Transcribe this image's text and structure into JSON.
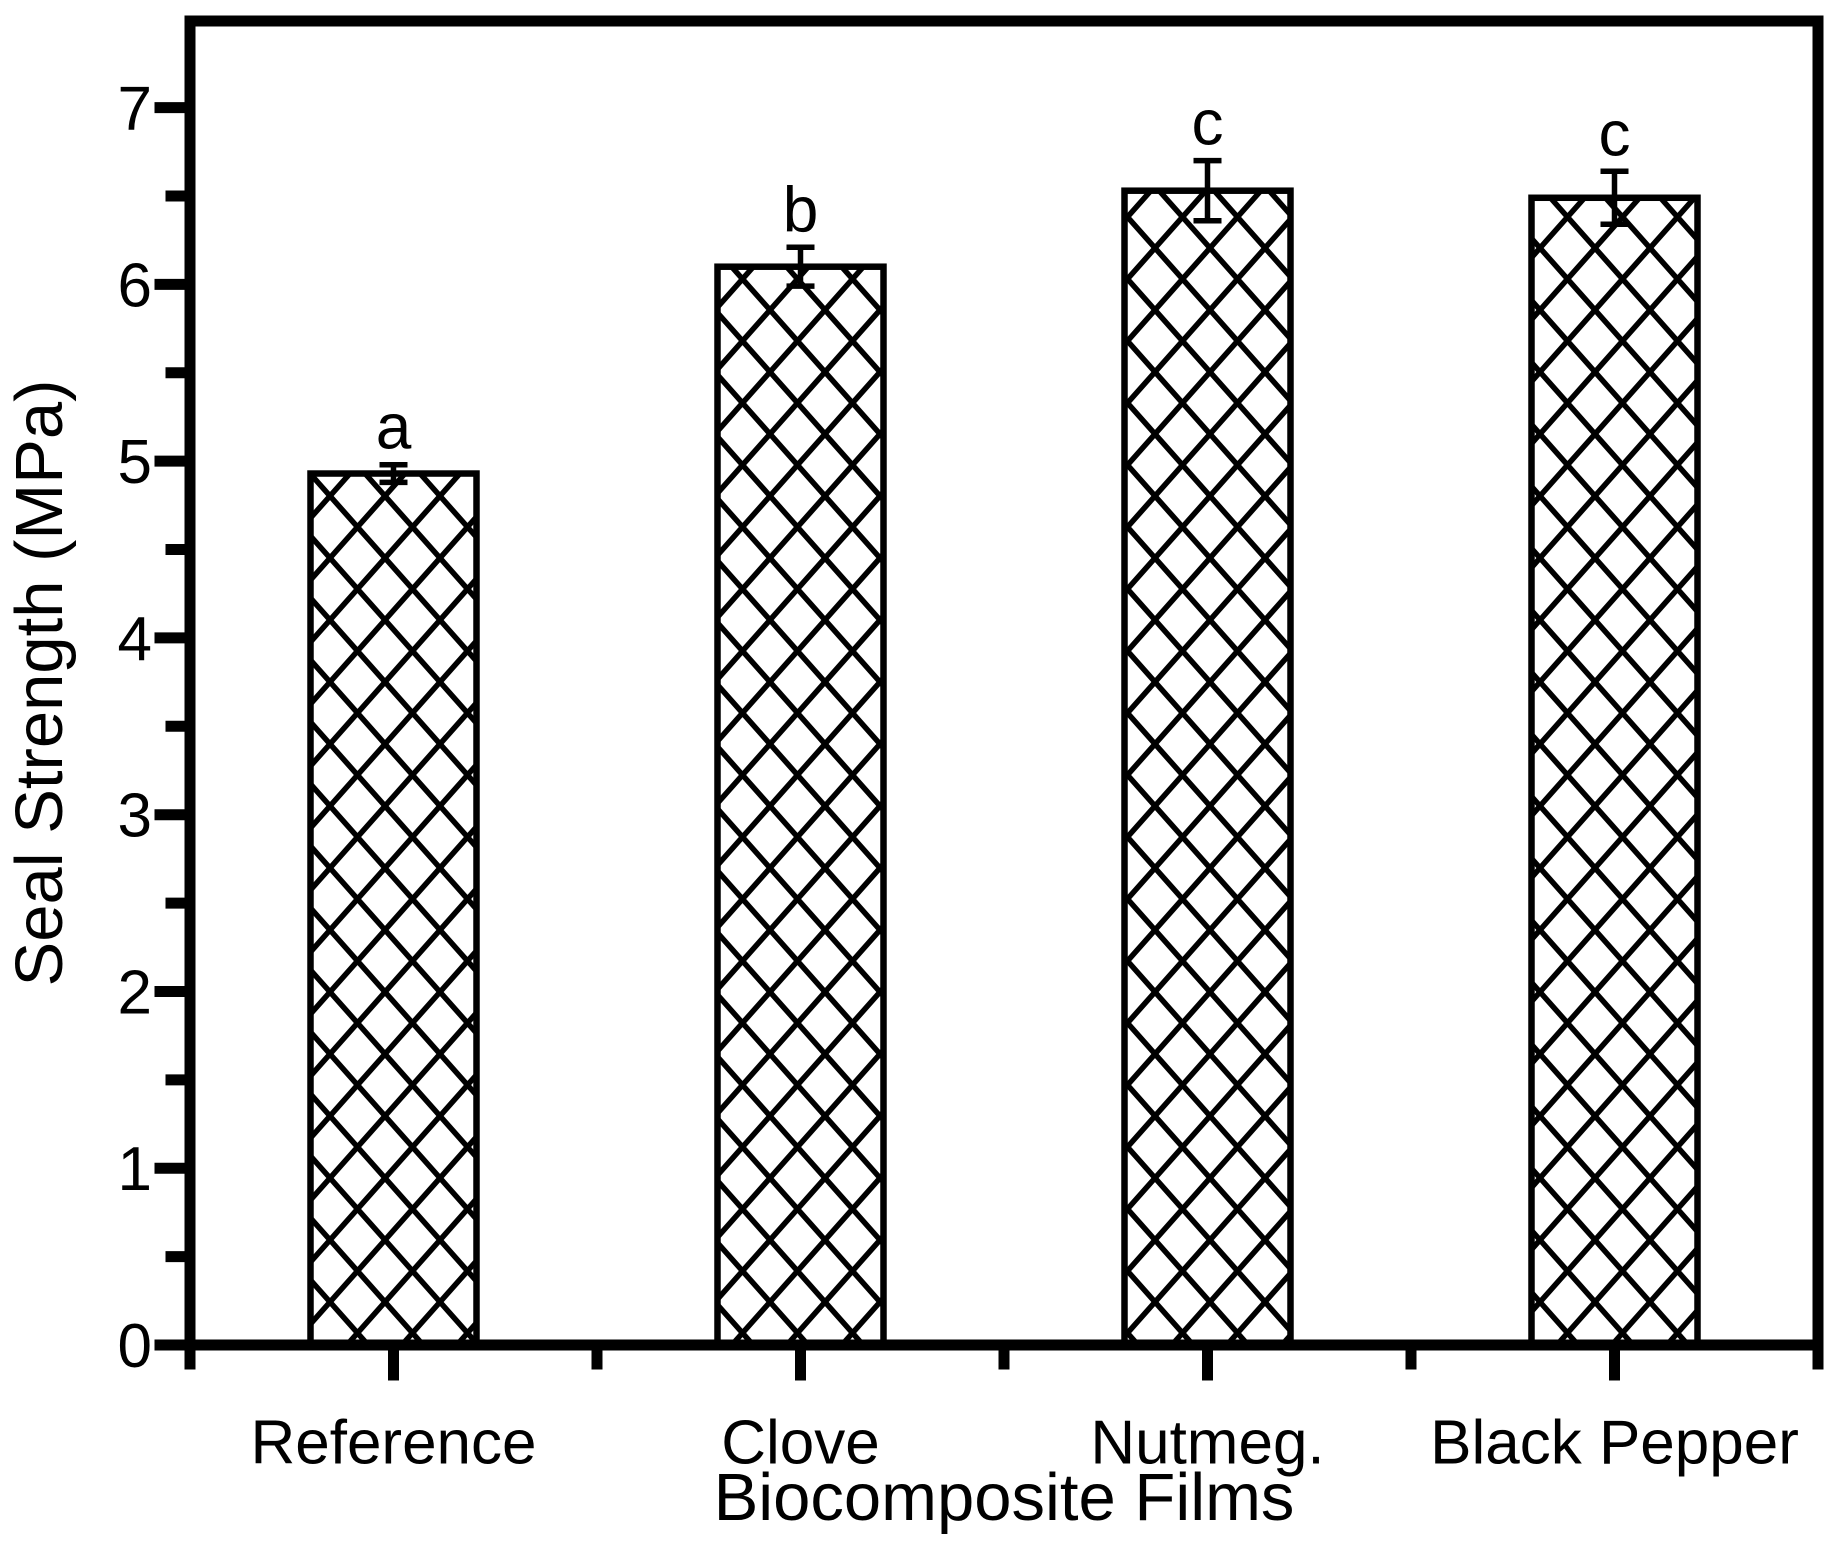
{
  "figure": {
    "background_color": "#ffffff",
    "ink_color": "#000000"
  },
  "chart_data": {
    "type": "bar",
    "title": "",
    "xlabel": "Biocomposite Films",
    "ylabel": "Seal Strength (MPa)",
    "categories": [
      "Reference",
      "Clove",
      "Nutmeg.",
      "Black Pepper"
    ],
    "values": [
      4.93,
      6.1,
      6.53,
      6.49
    ],
    "error_bars": [
      0.05,
      0.11,
      0.17,
      0.15
    ],
    "significance_letters": [
      "a",
      "b",
      "c",
      "c"
    ],
    "ylim": [
      0,
      7.49
    ],
    "ytick_labels": [
      "0",
      "1",
      "2",
      "3",
      "4",
      "5",
      "6",
      "7"
    ],
    "yticks": [
      0,
      1,
      2,
      3,
      4,
      5,
      6,
      7
    ],
    "ytick_minor_step": 0.5,
    "grid": false,
    "legend": null,
    "bar_style": {
      "fill": "#ffffff",
      "hatch": "diagonal-crosshatch",
      "hatch_color": "#000000",
      "outline_color": "#000000"
    }
  }
}
